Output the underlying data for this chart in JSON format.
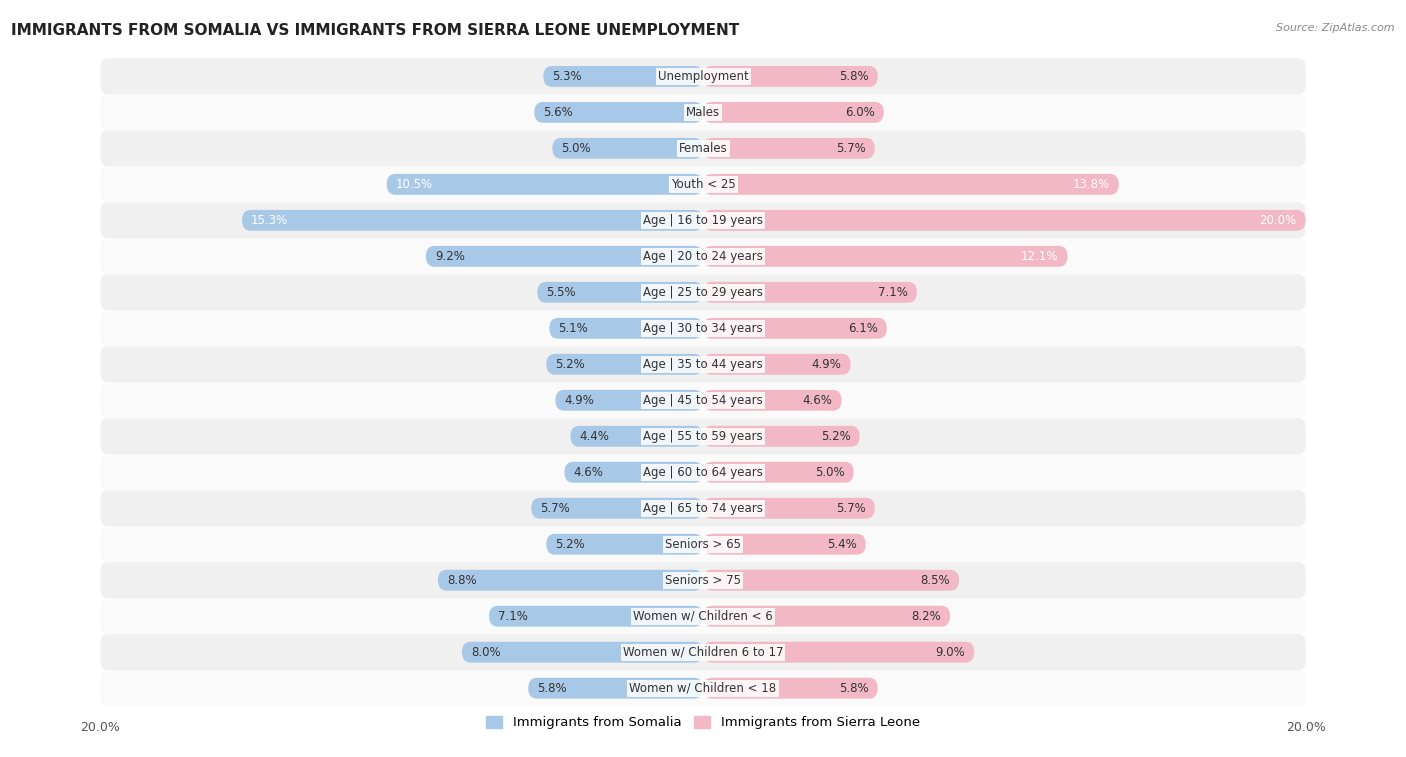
{
  "title": "IMMIGRANTS FROM SOMALIA VS IMMIGRANTS FROM SIERRA LEONE UNEMPLOYMENT",
  "source": "Source: ZipAtlas.com",
  "categories": [
    "Unemployment",
    "Males",
    "Females",
    "Youth < 25",
    "Age | 16 to 19 years",
    "Age | 20 to 24 years",
    "Age | 25 to 29 years",
    "Age | 30 to 34 years",
    "Age | 35 to 44 years",
    "Age | 45 to 54 years",
    "Age | 55 to 59 years",
    "Age | 60 to 64 years",
    "Age | 65 to 74 years",
    "Seniors > 65",
    "Seniors > 75",
    "Women w/ Children < 6",
    "Women w/ Children 6 to 17",
    "Women w/ Children < 18"
  ],
  "somalia_values": [
    5.3,
    5.6,
    5.0,
    10.5,
    15.3,
    9.2,
    5.5,
    5.1,
    5.2,
    4.9,
    4.4,
    4.6,
    5.7,
    5.2,
    8.8,
    7.1,
    8.0,
    5.8
  ],
  "sierraleone_values": [
    5.8,
    6.0,
    5.7,
    13.8,
    20.0,
    12.1,
    7.1,
    6.1,
    4.9,
    4.6,
    5.2,
    5.0,
    5.7,
    5.4,
    8.5,
    8.2,
    9.0,
    5.8
  ],
  "somalia_color": "#a8c8e8",
  "sierraleone_color": "#f2b8c6",
  "row_color_odd": "#f0f0f0",
  "row_color_even": "#fafafa",
  "max_value": 20.0,
  "legend_somalia": "Immigrants from Somalia",
  "legend_sierraleone": "Immigrants from Sierra Leone",
  "title_fontsize": 11,
  "source_fontsize": 8,
  "label_fontsize": 8.5,
  "value_fontsize": 8.5
}
